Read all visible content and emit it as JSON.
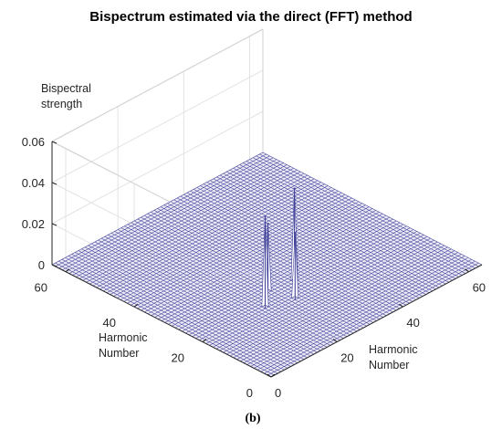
{
  "chart_data": {
    "type": "surface",
    "title": "Bispectrum estimated via the direct (FFT) method",
    "zlabel": [
      "Bispectral",
      "strength"
    ],
    "xlabel": [
      "Harmonic",
      "Number"
    ],
    "ylabel": [
      "Harmonic",
      "Number"
    ],
    "panel_label": "(b)",
    "zlim": [
      0,
      0.06
    ],
    "z_ticks": [
      "0",
      "0.02",
      "0.04",
      "0.06"
    ],
    "x_range": [
      0,
      64
    ],
    "y_range": [
      0,
      64
    ],
    "x_ticks": [
      {
        "value": 0,
        "label": "0"
      },
      {
        "value": 20,
        "label": "20"
      },
      {
        "value": 40,
        "label": "40"
      },
      {
        "value": 60,
        "label": "60"
      }
    ],
    "y_ticks": [
      {
        "value": 0,
        "label": "0"
      },
      {
        "value": 20,
        "label": "20"
      },
      {
        "value": 40,
        "label": "40"
      },
      {
        "value": 60,
        "label": "60"
      }
    ],
    "grid": true,
    "mesh_color": "#3e3e98",
    "mesh_fill": "#ffffff",
    "baseline": 0,
    "peaks": [
      {
        "x": 19,
        "y": 20,
        "z": 0.045
      },
      {
        "x": 24,
        "y": 24,
        "z": 0.034
      },
      {
        "x": 26,
        "y": 18,
        "z": 0.033
      },
      {
        "x": 31,
        "y": 23,
        "z": 0.046
      }
    ]
  }
}
